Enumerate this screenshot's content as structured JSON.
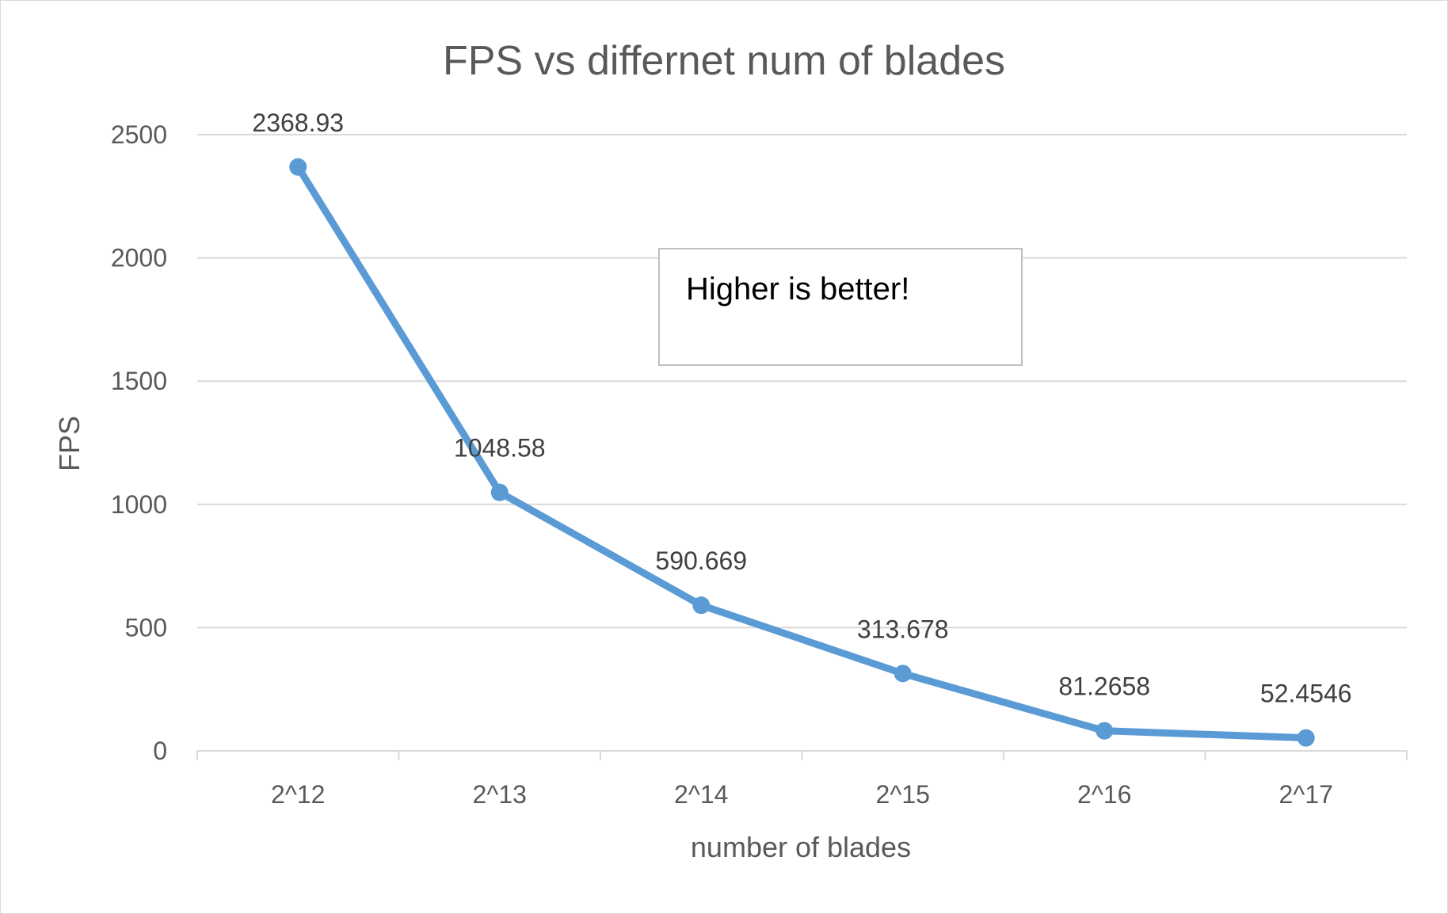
{
  "chart_data": {
    "type": "line",
    "title": "FPS vs differnet num of blades",
    "xlabel": "number of blades",
    "ylabel": "FPS",
    "categories": [
      "2^12",
      "2^13",
      "2^14",
      "2^15",
      "2^16",
      "2^17"
    ],
    "series": [
      {
        "values": [
          2368.93,
          1048.58,
          590.669,
          313.678,
          81.2658,
          52.4546
        ],
        "labels": [
          "2368.93",
          "1048.58",
          "590.669",
          "313.678",
          "81.2658",
          "52.4546"
        ],
        "color": "#5b9bd5"
      }
    ],
    "ylim": [
      0,
      2500
    ],
    "yticks": [
      "0",
      "500",
      "1000",
      "1500",
      "2000",
      "2500"
    ],
    "grid": true,
    "legend": "none",
    "annotation": "Higher is better!"
  }
}
